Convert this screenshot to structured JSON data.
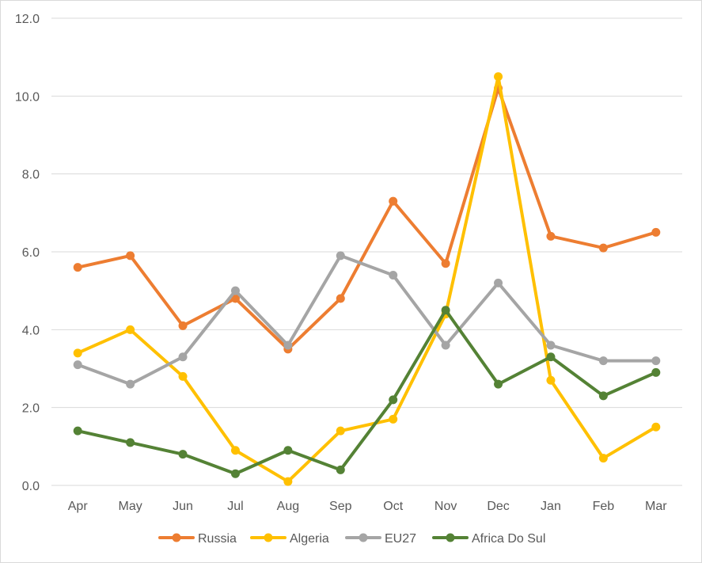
{
  "chart_data": {
    "type": "line",
    "categories": [
      "Apr",
      "May",
      "Jun",
      "Jul",
      "Aug",
      "Sep",
      "Oct",
      "Nov",
      "Dec",
      "Jan",
      "Feb",
      "Mar"
    ],
    "series": [
      {
        "name": "Russia",
        "color": "#ed7d31",
        "values": [
          5.6,
          5.9,
          4.1,
          4.8,
          3.5,
          4.8,
          7.3,
          5.7,
          10.2,
          6.4,
          6.1,
          6.5
        ]
      },
      {
        "name": "Algeria",
        "color": "#ffc000",
        "values": [
          3.4,
          4.0,
          2.8,
          0.9,
          0.1,
          1.4,
          1.7,
          4.4,
          10.5,
          2.7,
          0.7,
          1.5
        ]
      },
      {
        "name": "EU27",
        "color": "#a5a5a5",
        "values": [
          3.1,
          2.6,
          3.3,
          5.0,
          3.6,
          5.9,
          5.4,
          3.6,
          5.2,
          3.6,
          3.2,
          3.2
        ]
      },
      {
        "name": "Africa Do Sul",
        "color": "#548235",
        "values": [
          1.4,
          1.1,
          0.8,
          0.3,
          0.9,
          0.4,
          2.2,
          4.5,
          2.6,
          3.3,
          2.3,
          2.9
        ]
      }
    ],
    "yticks": [
      "0.0",
      "2.0",
      "4.0",
      "6.0",
      "8.0",
      "10.0",
      "12.0"
    ],
    "ylim": [
      0,
      12
    ],
    "grid": true,
    "legend": "bottom"
  }
}
